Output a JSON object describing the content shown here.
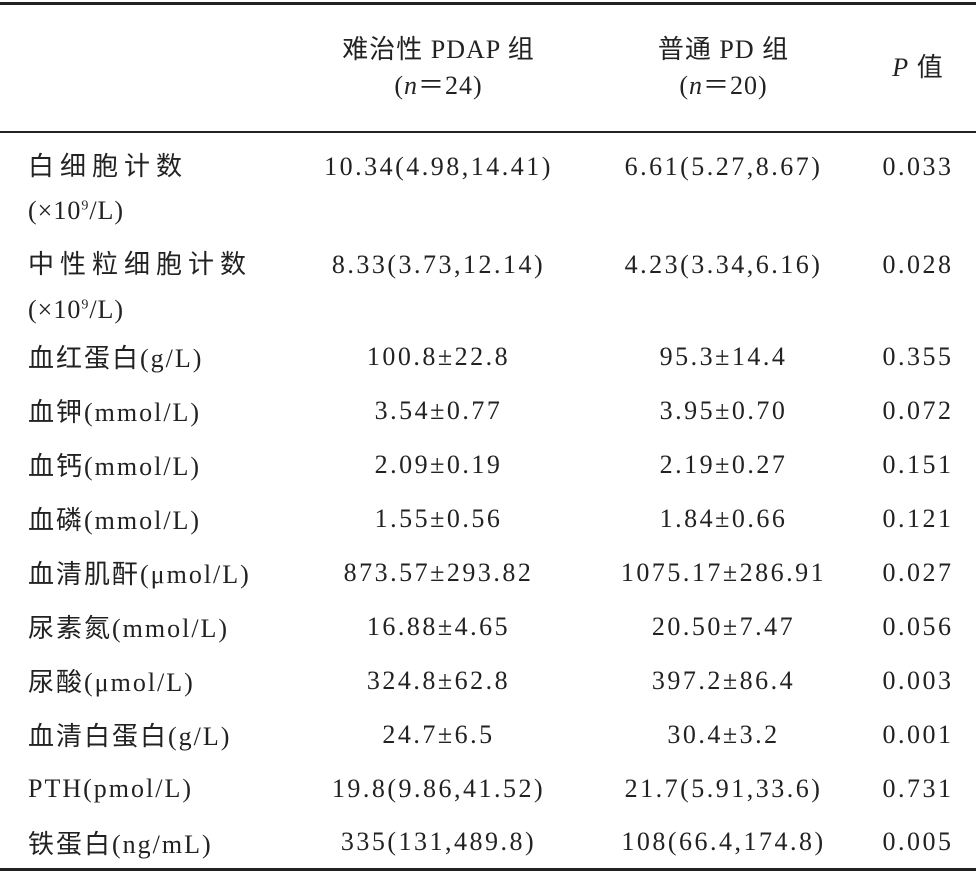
{
  "table": {
    "header": [
      {
        "title": "难治性 PDAP 组",
        "sub": [
          "(",
          "n",
          "＝24)"
        ]
      },
      {
        "title": "普通 PD 组",
        "sub": [
          "(",
          "n",
          "＝20)"
        ]
      },
      {
        "title": [
          "P",
          " 值"
        ]
      }
    ],
    "rows": [
      {
        "name": "白细胞计数",
        "unit": [
          "(×10",
          "9",
          "/L)"
        ],
        "cells": [
          "10.34(4.98,14.41)",
          "6.61(5.27,8.67)",
          "0.033"
        ]
      },
      {
        "name": "中性粒细胞计数",
        "unit": [
          "(×10",
          "9",
          "/L)"
        ],
        "cells": [
          "8.33(3.73,12.14)",
          "4.23(3.34,6.16)",
          "0.028"
        ]
      },
      {
        "name": "血红蛋白(g/L)",
        "cells": [
          "100.8±22.8",
          "95.3±14.4",
          "0.355"
        ]
      },
      {
        "name": "血钾(mmol/L)",
        "cells": [
          "3.54±0.77",
          "3.95±0.70",
          "0.072"
        ]
      },
      {
        "name": "血钙(mmol/L)",
        "cells": [
          "2.09±0.19",
          "2.19±0.27",
          "0.151"
        ]
      },
      {
        "name": "血磷(mmol/L)",
        "cells": [
          "1.55±0.56",
          "1.84±0.66",
          "0.121"
        ]
      },
      {
        "name": "血清肌酐(μmol/L)",
        "cells": [
          "873.57±293.82",
          "1075.17±286.91",
          "0.027"
        ]
      },
      {
        "name": "尿素氮(mmol/L)",
        "cells": [
          "16.88±4.65",
          "20.50±7.47",
          "0.056"
        ]
      },
      {
        "name": "尿酸(μmol/L)",
        "cells": [
          "324.8±62.8",
          "397.2±86.4",
          "0.003"
        ]
      },
      {
        "name": "血清白蛋白(g/L)",
        "cells": [
          "24.7±6.5",
          "30.4±3.2",
          "0.001"
        ]
      },
      {
        "name": "PTH(pmol/L)",
        "cells": [
          "19.8(9.86,41.52)",
          "21.7(5.91,33.6)",
          "0.731"
        ]
      },
      {
        "name": "铁蛋白(ng/mL)",
        "cells": [
          "335(131,489.8)",
          "108(66.4,174.8)",
          "0.005"
        ]
      }
    ]
  }
}
